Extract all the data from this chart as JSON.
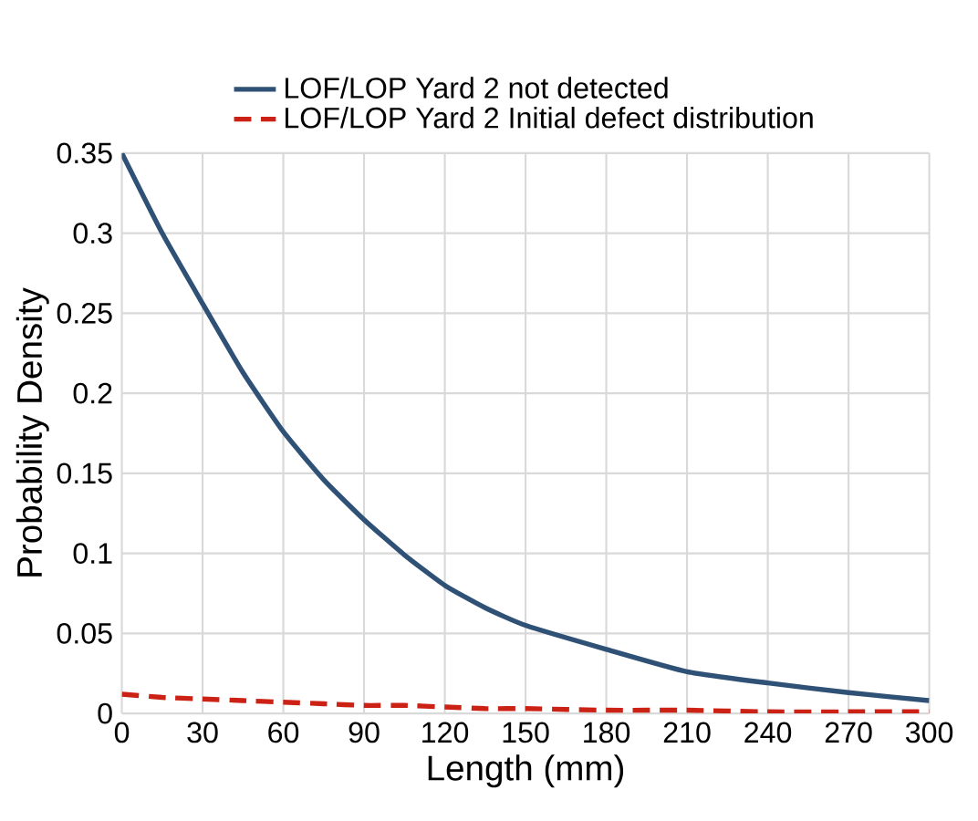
{
  "chart_data": {
    "type": "line",
    "xlabel": "Length (mm)",
    "ylabel": "Probability Density",
    "x": [
      0,
      15,
      30,
      45,
      60,
      75,
      90,
      105,
      120,
      135,
      150,
      180,
      210,
      240,
      270,
      300
    ],
    "series": [
      {
        "name": "LOF/LOP Yard 2 not detected",
        "color": "#2f5175",
        "line_style": "solid",
        "values": [
          0.35,
          0.3,
          0.256,
          0.213,
          0.176,
          0.146,
          0.121,
          0.099,
          0.08,
          0.066,
          0.055,
          0.04,
          0.026,
          0.019,
          0.013,
          0.008
        ]
      },
      {
        "name": "LOF/LOP Yard 2 Initial defect distribution",
        "color": "#cc2216",
        "line_style": "dashed",
        "values": [
          0.012,
          0.01,
          0.009,
          0.008,
          0.007,
          0.006,
          0.005,
          0.005,
          0.004,
          0.003,
          0.003,
          0.002,
          0.002,
          0.001,
          0.001,
          0.001
        ]
      }
    ],
    "xlim": [
      0,
      300
    ],
    "xticks": [
      0,
      30,
      60,
      90,
      120,
      150,
      180,
      210,
      240,
      270,
      300
    ],
    "ylim": [
      0,
      0.35
    ],
    "yticks": [
      0,
      0.05,
      0.1,
      0.15,
      0.2,
      0.25,
      0.3,
      0.35
    ],
    "grid": true,
    "legend": "top",
    "marker": "none"
  }
}
